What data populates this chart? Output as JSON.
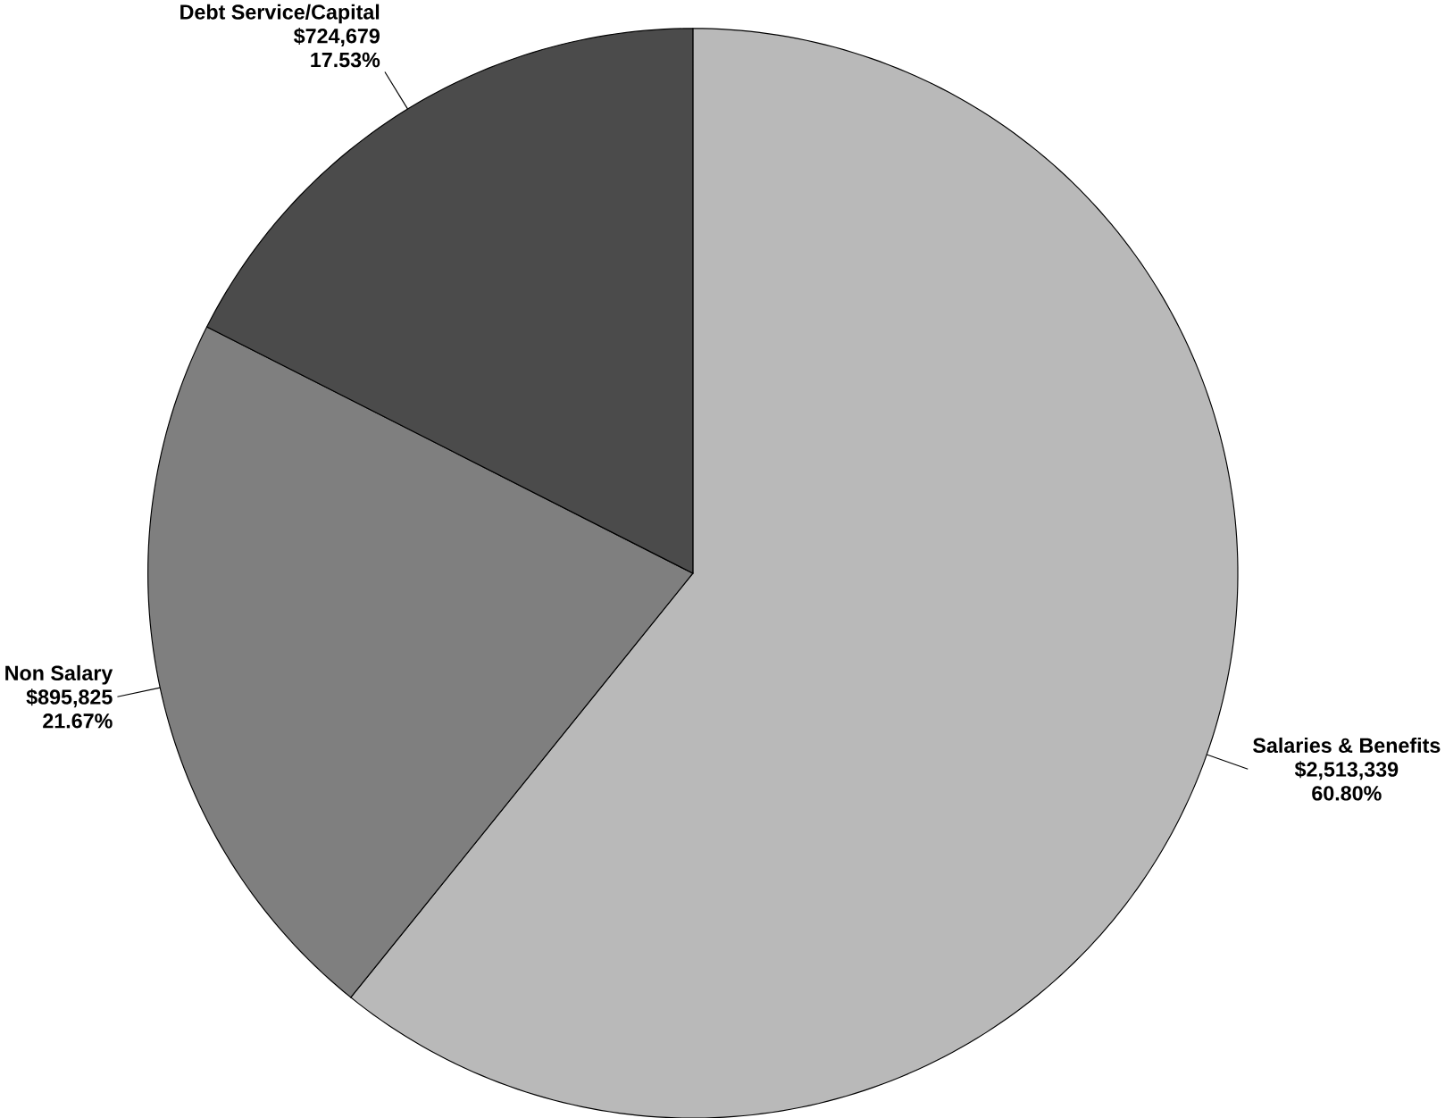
{
  "chart_data": {
    "type": "pie",
    "categories": [
      "Salaries & Benefits",
      "Non Salary",
      "Debt Service/Capital"
    ],
    "values": [
      60.8,
      21.67,
      17.53
    ],
    "value_labels": [
      [
        "$2,513,339",
        "60.80%"
      ],
      [
        "$895,825",
        "21.67%"
      ],
      [
        "$724,679",
        "17.53%"
      ]
    ],
    "colors": [
      "#b9b9b9",
      "#7f7f7f",
      "#4b4b4b"
    ]
  }
}
